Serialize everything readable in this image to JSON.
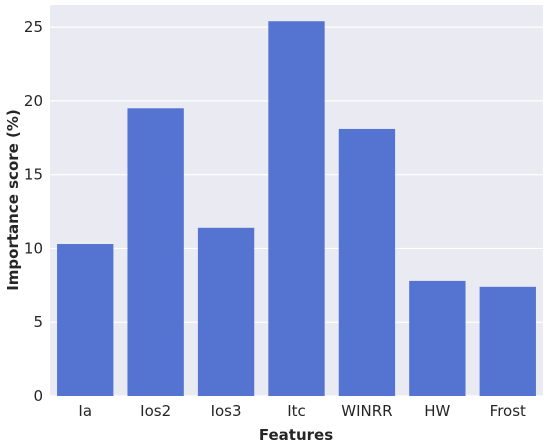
{
  "chart_data": {
    "type": "bar",
    "categories": [
      "Ia",
      "Ios2",
      "Ios3",
      "Itc",
      "WINRR",
      "HW",
      "Frost"
    ],
    "values": [
      10.3,
      19.5,
      11.4,
      25.4,
      18.1,
      7.8,
      7.4
    ],
    "xlabel": "Features",
    "ylabel": "Importance score (%)",
    "ylim": [
      0,
      26.5
    ],
    "yticks": [
      0,
      5,
      10,
      15,
      20,
      25
    ],
    "grid": true,
    "legend": "none",
    "colors": {
      "bar": "#5574d2",
      "background": "#eaeaf2",
      "grid": "#ffffff"
    }
  }
}
